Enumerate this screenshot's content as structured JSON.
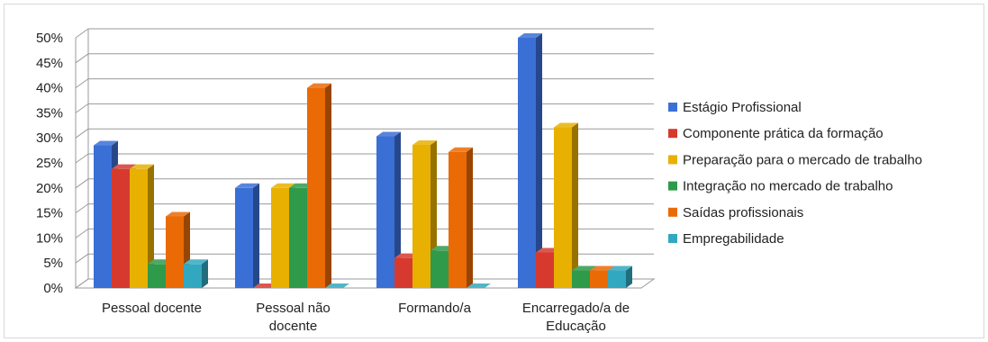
{
  "chart_data": {
    "type": "bar",
    "title": "",
    "xlabel": "",
    "ylabel": "",
    "ylim": [
      0,
      50
    ],
    "yticks": [
      "0%",
      "5%",
      "10%",
      "15%",
      "20%",
      "25%",
      "30%",
      "35%",
      "40%",
      "45%",
      "50%"
    ],
    "categories": [
      [
        "Pessoal docente"
      ],
      [
        "Pessoal não",
        "docente"
      ],
      [
        "Formando/a"
      ],
      [
        "Encarregado/a de",
        "Educação"
      ]
    ],
    "series": [
      {
        "name": "Estágio Profissional",
        "color": "#3a6fd6",
        "values": [
          28.5,
          20,
          30.3,
          50
        ]
      },
      {
        "name": "Componente prática da formação",
        "color": "#d63a2e",
        "values": [
          23.8,
          0,
          6,
          7.1
        ]
      },
      {
        "name": "Preparação para o mercado de trabalho",
        "color": "#e8b000",
        "values": [
          23.8,
          20,
          28.6,
          32.1
        ]
      },
      {
        "name": "Integração no mercado de trabalho",
        "color": "#2e9a4a",
        "values": [
          4.8,
          20,
          7.5,
          3.5
        ]
      },
      {
        "name": "Saídas profissionais",
        "color": "#ea6a06",
        "values": [
          14.3,
          40,
          27.2,
          3.5
        ]
      },
      {
        "name": "Empregabilidade",
        "color": "#32a8c0",
        "values": [
          4.8,
          0,
          0,
          3.5
        ]
      }
    ],
    "grid": true,
    "legend_position": "right"
  }
}
